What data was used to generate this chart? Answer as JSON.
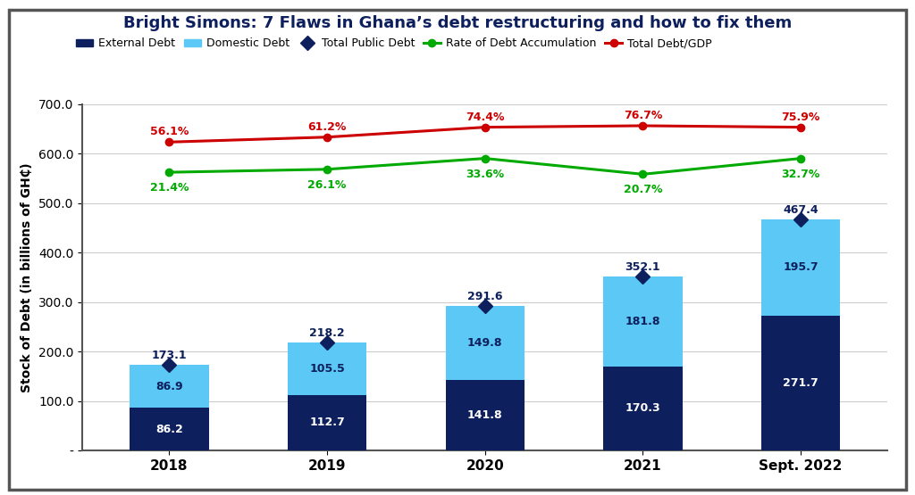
{
  "years": [
    "2018",
    "2019",
    "2020",
    "2021",
    "Sept. 2022"
  ],
  "external_debt": [
    86.2,
    112.7,
    141.8,
    170.3,
    271.7
  ],
  "domestic_debt": [
    86.9,
    105.5,
    149.8,
    181.8,
    195.7
  ],
  "total_public_debt": [
    173.1,
    218.2,
    291.6,
    352.1,
    467.4
  ],
  "rate_of_debt_accumulation": [
    21.4,
    26.1,
    33.6,
    20.7,
    32.7
  ],
  "total_debt_gdp": [
    56.1,
    61.2,
    74.4,
    76.7,
    75.9
  ],
  "rate_line_y": [
    562,
    568,
    590,
    558,
    590
  ],
  "gdp_line_y": [
    623,
    633,
    653,
    656,
    653
  ],
  "external_color": "#0d1f5c",
  "domestic_color": "#5bc8f5",
  "total_debt_marker_color": "#0d1f5c",
  "rate_color": "#00aa00",
  "gdp_color": "#cc0000",
  "title": "Bright Simons: 7 Flaws in Ghana’s debt restructuring and how to fix them",
  "ylabel": "Stock of Debt (in billions of GH₵)",
  "ylim_left": [
    0,
    700
  ],
  "background_color": "#ffffff"
}
